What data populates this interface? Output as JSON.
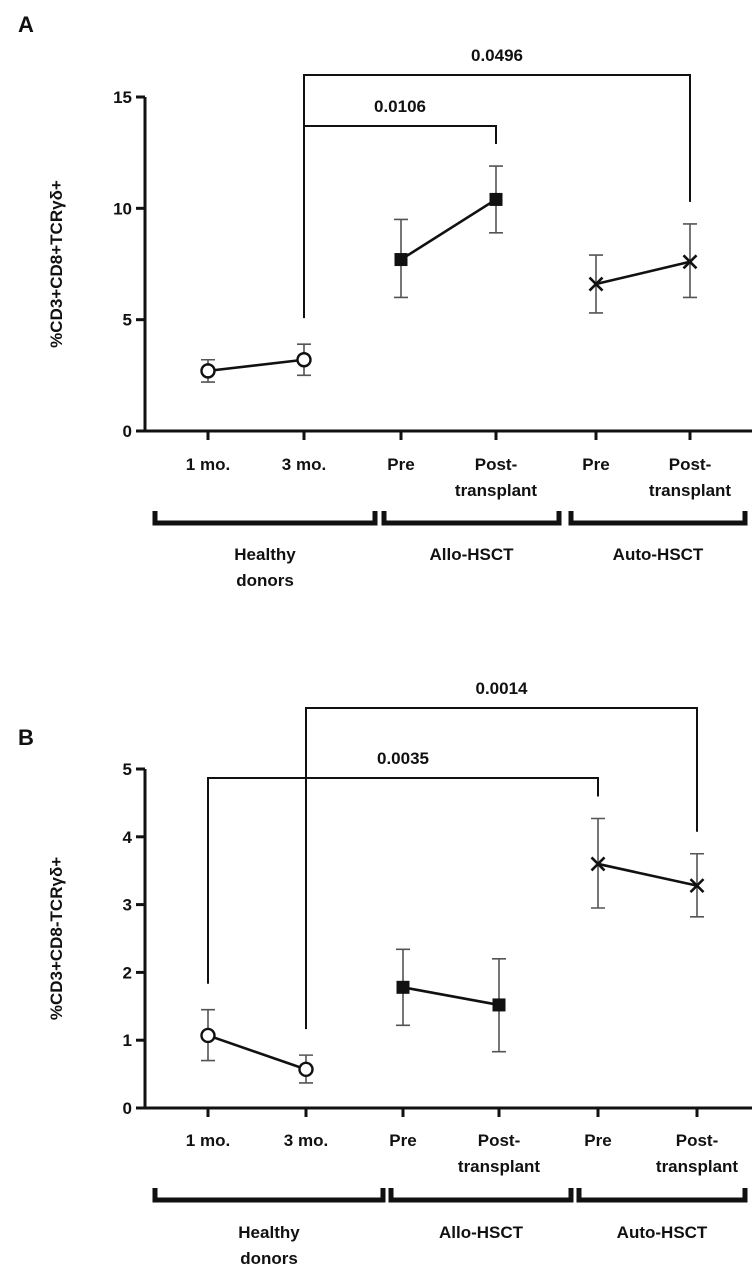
{
  "chart_data": [
    {
      "panel": "A",
      "type": "line",
      "ylabel": "%CD3+CD8+TCRγδ+",
      "ylim": [
        0,
        15
      ],
      "yticks": [
        0,
        5,
        10,
        15
      ],
      "categories": [
        {
          "label": [
            "1 mo."
          ]
        },
        {
          "label": [
            "3 mo."
          ]
        },
        {
          "label": [
            "Pre"
          ]
        },
        {
          "label": [
            "Post-",
            "transplant"
          ]
        },
        {
          "label": [
            "Pre"
          ]
        },
        {
          "label": [
            "Post-",
            "transplant"
          ]
        }
      ],
      "groups": [
        {
          "label": [
            "Healthy",
            "donors"
          ],
          "span": [
            0,
            1
          ]
        },
        {
          "label": [
            "Allo-HSCT"
          ],
          "span": [
            2,
            3
          ]
        },
        {
          "label": [
            "Auto-HSCT"
          ],
          "span": [
            4,
            5
          ]
        }
      ],
      "series": [
        {
          "marker": "circle-open",
          "points": [
            {
              "x": 0,
              "y": 2.7,
              "lo": 2.2,
              "hi": 3.2
            },
            {
              "x": 1,
              "y": 3.2,
              "lo": 2.5,
              "hi": 3.9
            }
          ]
        },
        {
          "marker": "square",
          "points": [
            {
              "x": 2,
              "y": 7.7,
              "lo": 6.0,
              "hi": 9.5
            },
            {
              "x": 3,
              "y": 10.4,
              "lo": 8.9,
              "hi": 11.9
            }
          ]
        },
        {
          "marker": "x",
          "points": [
            {
              "x": 4,
              "y": 6.6,
              "lo": 5.3,
              "hi": 7.9
            },
            {
              "x": 5,
              "y": 7.6,
              "lo": 6.0,
              "hi": 9.3
            }
          ]
        }
      ],
      "comparisons": [
        {
          "from": 1,
          "to": 3,
          "p": "0.0106",
          "tier": 0
        },
        {
          "from": 1,
          "to": 5,
          "p": "0.0496",
          "tier": 1
        }
      ]
    },
    {
      "panel": "B",
      "type": "line",
      "ylabel": "%CD3+CD8-TCRγδ+",
      "ylim": [
        0,
        5
      ],
      "yticks": [
        0,
        1,
        2,
        3,
        4,
        5
      ],
      "categories": [
        {
          "label": [
            "1 mo."
          ]
        },
        {
          "label": [
            "3 mo."
          ]
        },
        {
          "label": [
            "Pre"
          ]
        },
        {
          "label": [
            "Post-",
            "transplant"
          ]
        },
        {
          "label": [
            "Pre"
          ]
        },
        {
          "label": [
            "Post-",
            "transplant"
          ]
        }
      ],
      "groups": [
        {
          "label": [
            "Healthy",
            "donors"
          ],
          "span": [
            0,
            1
          ]
        },
        {
          "label": [
            "Allo-HSCT"
          ],
          "span": [
            2,
            3
          ]
        },
        {
          "label": [
            "Auto-HSCT"
          ],
          "span": [
            4,
            5
          ]
        }
      ],
      "series": [
        {
          "marker": "circle-open",
          "points": [
            {
              "x": 0,
              "y": 1.07,
              "lo": 0.7,
              "hi": 1.45
            },
            {
              "x": 1,
              "y": 0.57,
              "lo": 0.37,
              "hi": 0.78
            }
          ]
        },
        {
          "marker": "square",
          "points": [
            {
              "x": 2,
              "y": 1.78,
              "lo": 1.22,
              "hi": 2.34
            },
            {
              "x": 3,
              "y": 1.52,
              "lo": 0.83,
              "hi": 2.2
            }
          ]
        },
        {
          "marker": "x",
          "points": [
            {
              "x": 4,
              "y": 3.6,
              "lo": 2.95,
              "hi": 4.27
            },
            {
              "x": 5,
              "y": 3.28,
              "lo": 2.82,
              "hi": 3.75
            }
          ]
        }
      ],
      "comparisons": [
        {
          "from": 0,
          "to": 4,
          "p": "0.0035",
          "tier": 0
        },
        {
          "from": 1,
          "to": 5,
          "p": "0.0014",
          "tier": 1
        }
      ]
    }
  ]
}
